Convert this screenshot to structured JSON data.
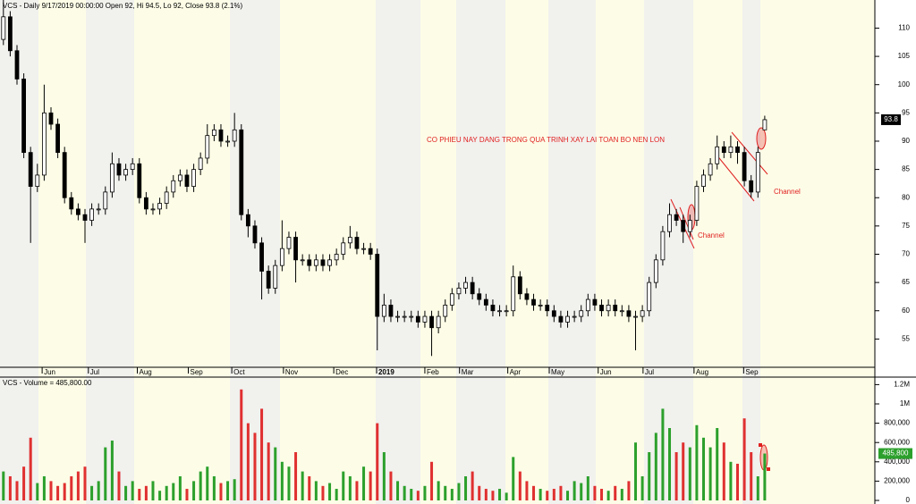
{
  "chart_data": [
    {
      "type": "candlestick",
      "title": "VCS - Daily 9/17/2019 00:00:00 Open 92, Hi 94.5, Lo 92, Close 93.8 (2.1%)",
      "open": [
        108,
        112,
        106,
        101,
        88,
        82,
        84,
        95,
        93,
        88,
        80,
        78,
        77,
        76,
        78,
        78,
        81,
        86,
        84,
        85,
        86,
        80,
        78,
        78,
        79,
        81,
        83,
        84,
        82,
        85,
        87,
        91,
        92,
        90,
        90,
        92,
        77,
        75,
        72,
        67,
        64,
        68,
        71,
        73,
        69,
        69,
        68,
        69,
        68,
        69,
        70,
        72,
        73,
        71,
        71,
        70,
        59,
        61,
        59,
        59,
        59,
        59,
        58,
        59,
        57,
        59,
        61,
        63,
        64,
        65,
        63,
        62,
        61,
        60,
        60,
        60,
        66,
        63,
        62,
        61,
        61,
        60,
        59,
        58,
        59,
        59,
        60,
        62,
        61,
        60,
        61,
        60,
        60,
        59,
        59,
        60,
        65,
        69,
        74,
        77,
        76,
        74,
        76,
        82,
        84,
        86,
        89,
        88,
        89,
        88,
        83,
        81,
        92
      ],
      "high": [
        115,
        113,
        107,
        102,
        89,
        86,
        100,
        96,
        94,
        89,
        81,
        79,
        78,
        79,
        79,
        82,
        88,
        87,
        86,
        87,
        87,
        81,
        79,
        80,
        82,
        84,
        85,
        85,
        86,
        88,
        93,
        93,
        93,
        91,
        95,
        93,
        78,
        76,
        73,
        68,
        69,
        76,
        74,
        74,
        70,
        70,
        70,
        70,
        70,
        71,
        73,
        75,
        74,
        72,
        72,
        71,
        63,
        62,
        60,
        60,
        60,
        60,
        60,
        60,
        60,
        62,
        64,
        65,
        66,
        66,
        64,
        63,
        62,
        61,
        61,
        68,
        67,
        64,
        63,
        62,
        62,
        61,
        60,
        60,
        60,
        61,
        63,
        63,
        62,
        62,
        62,
        61,
        61,
        60,
        61,
        66,
        70,
        75,
        79,
        78,
        77,
        77,
        83,
        85,
        87,
        91,
        90,
        91,
        90,
        89,
        84,
        89,
        94.5
      ],
      "low": [
        107,
        105,
        100,
        87,
        72,
        81,
        83,
        92,
        87,
        79,
        77,
        76,
        72,
        75,
        77,
        77,
        80,
        83,
        83,
        84,
        79,
        77,
        77,
        77,
        78,
        80,
        82,
        81,
        81,
        84,
        86,
        90,
        89,
        89,
        89,
        76,
        73,
        71,
        62,
        63,
        63,
        67,
        70,
        65,
        68,
        67,
        67,
        67,
        67,
        68,
        69,
        71,
        70,
        70,
        69,
        53,
        58,
        58,
        58,
        58,
        58,
        57,
        57,
        52,
        56,
        58,
        60,
        62,
        63,
        62,
        61,
        60,
        59,
        59,
        59,
        59,
        62,
        61,
        60,
        60,
        59,
        58,
        57,
        57,
        58,
        58,
        59,
        60,
        59,
        59,
        59,
        59,
        58,
        53,
        58,
        59,
        64,
        68,
        73,
        75,
        72,
        73,
        75,
        81,
        83,
        85,
        87,
        87,
        86,
        82,
        80,
        80,
        92
      ],
      "close": [
        112,
        106,
        101,
        88,
        82,
        84,
        95,
        93,
        88,
        80,
        78,
        77,
        76,
        78,
        78,
        81,
        86,
        84,
        85,
        86,
        80,
        78,
        78,
        79,
        81,
        83,
        84,
        82,
        85,
        87,
        91,
        92,
        90,
        90,
        92,
        77,
        75,
        72,
        67,
        64,
        68,
        71,
        73,
        69,
        69,
        68,
        69,
        68,
        69,
        70,
        72,
        73,
        71,
        71,
        70,
        59,
        61,
        59,
        59,
        59,
        59,
        58,
        59,
        57,
        59,
        61,
        63,
        64,
        65,
        63,
        62,
        61,
        60,
        60,
        60,
        66,
        63,
        62,
        61,
        61,
        60,
        59,
        58,
        59,
        59,
        60,
        62,
        61,
        60,
        61,
        60,
        60,
        59,
        59,
        60,
        65,
        69,
        74,
        77,
        76,
        74,
        76,
        82,
        84,
        86,
        89,
        88,
        89,
        88,
        83,
        81,
        88,
        93.8
      ],
      "up_color": "#ffffff",
      "down_color": "#000000",
      "xlim": [
        -0.5,
        128.2
      ],
      "xticks": [
        {
          "value": 5.7,
          "label": "Jun"
        },
        {
          "value": 12.5,
          "label": "Jul"
        },
        {
          "value": 19.7,
          "label": "Aug"
        },
        {
          "value": 27.2,
          "label": "Sep"
        },
        {
          "value": 33.6,
          "label": "Oct"
        },
        {
          "value": 41.2,
          "label": "Nov"
        },
        {
          "value": 48.6,
          "label": "Dec"
        },
        {
          "value": 54.9,
          "label": "2019"
        },
        {
          "value": 62,
          "label": "Feb"
        },
        {
          "value": 67.1,
          "label": "Mar"
        },
        {
          "value": 74.2,
          "label": "Apr"
        },
        {
          "value": 80.3,
          "label": "May"
        },
        {
          "value": 87.5,
          "label": "Jun"
        },
        {
          "value": 94.1,
          "label": "Jul"
        },
        {
          "value": 101.6,
          "label": "Aug"
        },
        {
          "value": 108.9,
          "label": "Sep"
        }
      ],
      "ylim": [
        50,
        114.5
      ],
      "yticks": [
        55,
        60,
        65,
        70,
        75,
        80,
        85,
        90,
        95,
        100,
        105,
        110
      ],
      "annotations": [
        "CO PHIEU NAY DANG TRONG QUA TRINH XAY LAI TOAN BO NEN LON",
        "Channel",
        "Channel"
      ]
    },
    {
      "type": "bar",
      "title": "VCS - Volume = 485,800.00",
      "values": [
        300000,
        250000,
        200000,
        350000,
        650000,
        180000,
        250000,
        200000,
        150000,
        180000,
        250000,
        300000,
        350000,
        150000,
        200000,
        550000,
        620000,
        300000,
        150000,
        200000,
        120000,
        150000,
        200000,
        100000,
        150000,
        180000,
        250000,
        120000,
        200000,
        300000,
        350000,
        250000,
        180000,
        200000,
        220000,
        1150000,
        800000,
        700000,
        950000,
        600000,
        550000,
        400000,
        350000,
        500000,
        300000,
        250000,
        200000,
        150000,
        180000,
        120000,
        300000,
        250000,
        200000,
        350000,
        300000,
        800000,
        500000,
        300000,
        200000,
        150000,
        120000,
        100000,
        150000,
        400000,
        200000,
        150000,
        120000,
        180000,
        250000,
        300000,
        150000,
        120000,
        100000,
        120000,
        80000,
        450000,
        300000,
        200000,
        150000,
        120000,
        100000,
        120000,
        150000,
        100000,
        200000,
        180000,
        250000,
        150000,
        120000,
        100000,
        150000,
        120000,
        200000,
        600000,
        250000,
        500000,
        700000,
        950000,
        750000,
        500000,
        600000,
        550000,
        780000,
        650000,
        550000,
        750000,
        600000,
        400000,
        380000,
        850000,
        500000,
        250000,
        485800
      ],
      "up_color": "#2ca02c",
      "down_color": "#e03030",
      "ylim": [
        0,
        1250000
      ],
      "yticks": [
        0,
        {
          "value": 200000,
          "label": "200,000"
        },
        {
          "value": 400000,
          "label": "400,000"
        },
        {
          "value": 600000,
          "label": "600,000"
        },
        {
          "value": 800000,
          "label": "800,000"
        },
        {
          "value": 1000000,
          "label": "1M"
        },
        {
          "value": 1200000,
          "label": "1.2M"
        }
      ],
      "last_value_label": "485,800"
    }
  ]
}
